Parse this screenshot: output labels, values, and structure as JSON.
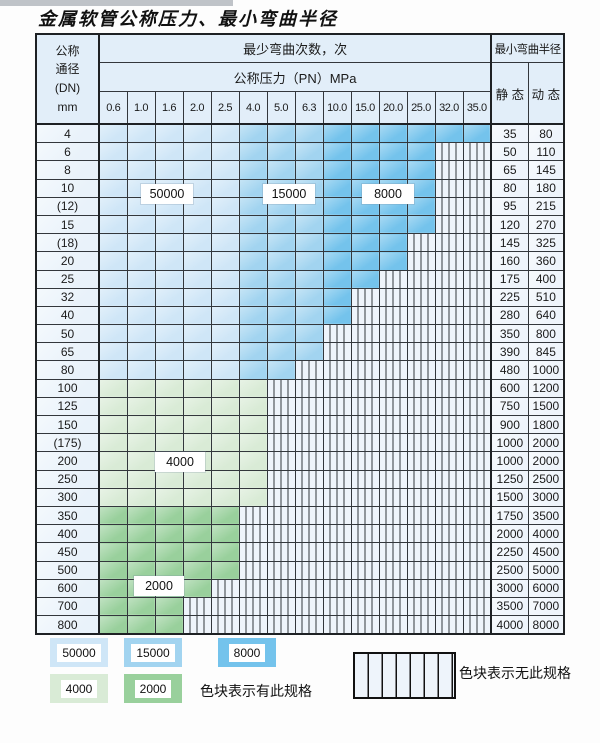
{
  "title": "金属软管公称压力、最小弯曲半径",
  "table": {
    "header": {
      "dn_lines": [
        "公称",
        "通径",
        "(DN)",
        "mm"
      ],
      "cycles_label": "最少弯曲次数，次",
      "radius_label": "最小弯曲半径",
      "pressure_label": "公称压力（PN）MPa",
      "static_label": "静 态",
      "dynamic_label": "动 态",
      "pressures": [
        "0.6",
        "1.0",
        "1.6",
        "2.0",
        "2.5",
        "4.0",
        "5.0",
        "6.3",
        "10.0",
        "15.0",
        "20.0",
        "25.0",
        "32.0",
        "35.0"
      ]
    },
    "rows": [
      {
        "dn": "4",
        "group": "blue",
        "colored": 14,
        "static": "35",
        "dynamic": "80"
      },
      {
        "dn": "6",
        "group": "blue",
        "colored": 12,
        "static": "50",
        "dynamic": "110"
      },
      {
        "dn": "8",
        "group": "blue",
        "colored": 12,
        "static": "65",
        "dynamic": "145"
      },
      {
        "dn": "10",
        "group": "blue",
        "colored": 12,
        "static": "80",
        "dynamic": "180"
      },
      {
        "dn": "(12)",
        "group": "blue",
        "colored": 12,
        "static": "95",
        "dynamic": "215"
      },
      {
        "dn": "15",
        "group": "blue",
        "colored": 12,
        "static": "120",
        "dynamic": "270"
      },
      {
        "dn": "(18)",
        "group": "blue",
        "colored": 11,
        "static": "145",
        "dynamic": "325"
      },
      {
        "dn": "20",
        "group": "blue",
        "colored": 11,
        "static": "160",
        "dynamic": "360"
      },
      {
        "dn": "25",
        "group": "blue",
        "colored": 10,
        "static": "175",
        "dynamic": "400"
      },
      {
        "dn": "32",
        "group": "blue",
        "colored": 9,
        "static": "225",
        "dynamic": "510"
      },
      {
        "dn": "40",
        "group": "blue",
        "colored": 9,
        "static": "280",
        "dynamic": "640"
      },
      {
        "dn": "50",
        "group": "blue",
        "colored": 8,
        "static": "350",
        "dynamic": "800"
      },
      {
        "dn": "65",
        "group": "blue",
        "colored": 8,
        "static": "390",
        "dynamic": "845"
      },
      {
        "dn": "80",
        "group": "blue",
        "colored": 7,
        "static": "480",
        "dynamic": "1000"
      },
      {
        "dn": "100",
        "group": "green4000",
        "colored": 6,
        "static": "600",
        "dynamic": "1200"
      },
      {
        "dn": "125",
        "group": "green4000",
        "colored": 6,
        "static": "750",
        "dynamic": "1500"
      },
      {
        "dn": "150",
        "group": "green4000",
        "colored": 6,
        "static": "900",
        "dynamic": "1800"
      },
      {
        "dn": "(175)",
        "group": "green4000",
        "colored": 6,
        "static": "1000",
        "dynamic": "2000"
      },
      {
        "dn": "200",
        "group": "green4000",
        "colored": 6,
        "static": "1000",
        "dynamic": "2000"
      },
      {
        "dn": "250",
        "group": "green4000",
        "colored": 6,
        "static": "1250",
        "dynamic": "2500"
      },
      {
        "dn": "300",
        "group": "green4000",
        "colored": 6,
        "static": "1500",
        "dynamic": "3000"
      },
      {
        "dn": "350",
        "group": "green2000",
        "colored": 5,
        "static": "1750",
        "dynamic": "3500"
      },
      {
        "dn": "400",
        "group": "green2000",
        "colored": 5,
        "static": "2000",
        "dynamic": "4000"
      },
      {
        "dn": "450",
        "group": "green2000",
        "colored": 5,
        "static": "2250",
        "dynamic": "4500"
      },
      {
        "dn": "500",
        "group": "green2000",
        "colored": 5,
        "static": "2500",
        "dynamic": "5000"
      },
      {
        "dn": "600",
        "group": "green2000",
        "colored": 4,
        "static": "3000",
        "dynamic": "6000"
      },
      {
        "dn": "700",
        "group": "green2000",
        "colored": 3,
        "static": "3500",
        "dynamic": "7000"
      },
      {
        "dn": "800",
        "group": "green2000",
        "colored": 3,
        "static": "4000",
        "dynamic": "8000"
      }
    ]
  },
  "cycle_labels": [
    {
      "text": "50000"
    },
    {
      "text": "15000"
    },
    {
      "text": "8000"
    },
    {
      "text": "4000"
    },
    {
      "text": "2000"
    }
  ],
  "legend": {
    "items": [
      {
        "label": "50000",
        "color": "#cfe6f7"
      },
      {
        "label": "15000",
        "color": "#a2d4f0"
      },
      {
        "label": "8000",
        "color": "#74c3ec"
      },
      {
        "label": "4000",
        "color": "#d9ebd6"
      },
      {
        "label": "2000",
        "color": "#99d09c"
      }
    ],
    "has_spec_text": "色块表示有此规格",
    "no_spec_text": "色块表示无此规格"
  },
  "colors": {
    "cycles_50000": "#cfe6f7",
    "cycles_15000": "#a2d4f0",
    "cycles_8000": "#74c3ec",
    "cycles_4000": "#d9ebd6",
    "cycles_2000": "#99d09c",
    "no_spec_bg": "#eef4fb",
    "header_bg": "#e2eef9",
    "dn_col_bg": "#e9f2fa",
    "grid_line": "#33373c"
  }
}
